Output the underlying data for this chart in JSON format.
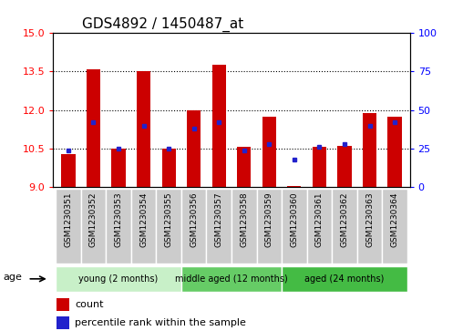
{
  "title": "GDS4892 / 1450487_at",
  "samples": [
    "GSM1230351",
    "GSM1230352",
    "GSM1230353",
    "GSM1230354",
    "GSM1230355",
    "GSM1230356",
    "GSM1230357",
    "GSM1230358",
    "GSM1230359",
    "GSM1230360",
    "GSM1230361",
    "GSM1230362",
    "GSM1230363",
    "GSM1230364"
  ],
  "count_values": [
    10.3,
    13.6,
    10.5,
    13.5,
    10.5,
    12.0,
    13.75,
    10.55,
    11.75,
    9.05,
    10.55,
    10.6,
    11.9,
    11.75
  ],
  "percentile_values": [
    24,
    42,
    25,
    40,
    25,
    38,
    42,
    24,
    28,
    18,
    26,
    28,
    40,
    42
  ],
  "ymin": 9.0,
  "ymax": 15.0,
  "yticks": [
    9,
    10.5,
    12,
    13.5,
    15
  ],
  "y2min": 0,
  "y2max": 100,
  "y2ticks": [
    0,
    25,
    50,
    75,
    100
  ],
  "bar_color": "#cc0000",
  "marker_color": "#2222cc",
  "group_colors": [
    "#c8f0c8",
    "#66cc66",
    "#44bb44"
  ],
  "groups": [
    {
      "label": "young (2 months)",
      "start": 0,
      "end": 5
    },
    {
      "label": "middle aged (12 months)",
      "start": 5,
      "end": 9
    },
    {
      "label": "aged (24 months)",
      "start": 9,
      "end": 14
    }
  ],
  "age_label": "age",
  "legend_count": "count",
  "legend_pct": "percentile rank within the sample",
  "title_fontsize": 11,
  "bar_width": 0.55,
  "tick_cell_color": "#cccccc",
  "tick_cell_border": "#ffffff"
}
